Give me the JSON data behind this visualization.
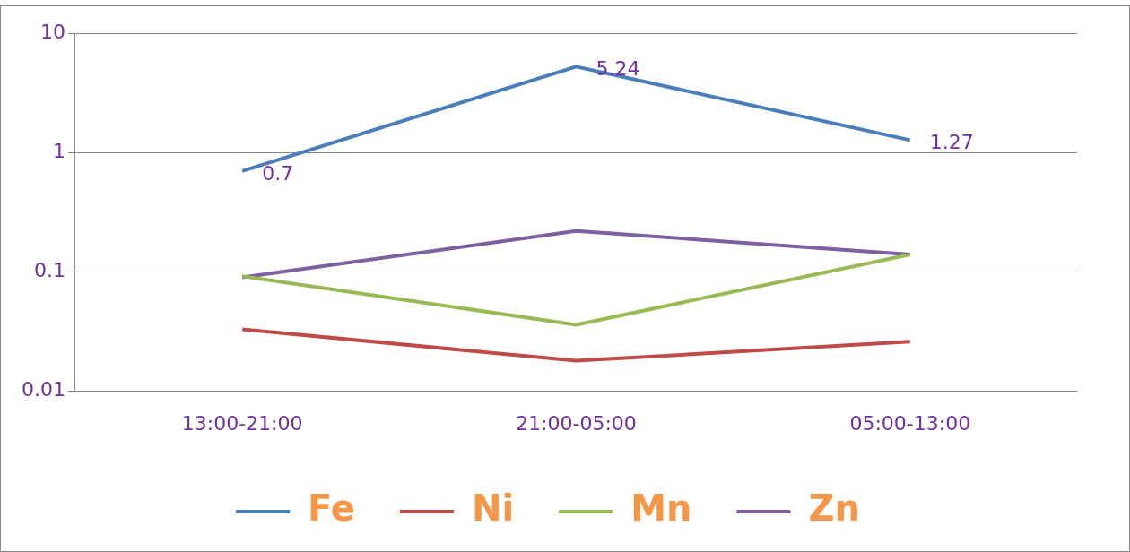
{
  "chart_data": {
    "type": "line",
    "categories": [
      "13:00-21:00",
      "21:00-05:00",
      "05:00-13:00"
    ],
    "series": [
      {
        "name": "Fe",
        "color": "#4a7ebb",
        "values": [
          0.7,
          5.24,
          1.27
        ],
        "value_labels": [
          "0.7",
          "5.24",
          "1.27"
        ]
      },
      {
        "name": "Ni",
        "color": "#be4b48",
        "values": [
          0.033,
          0.018,
          0.026
        ]
      },
      {
        "name": "Mn",
        "color": "#98b954",
        "values": [
          0.092,
          0.036,
          0.14
        ]
      },
      {
        "name": "Zn",
        "color": "#7d60a0",
        "values": [
          0.09,
          0.22,
          0.14
        ]
      }
    ],
    "log": true,
    "ylim": [
      0.01,
      10
    ],
    "yticks": [
      {
        "value": 0.01,
        "label": "0.01"
      },
      {
        "value": 0.1,
        "label": "0.1"
      },
      {
        "value": 1,
        "label": "1"
      },
      {
        "value": 10,
        "label": "10"
      }
    ],
    "grid": "y",
    "legend": "bottom",
    "marker": "none",
    "line_style": "solid"
  }
}
